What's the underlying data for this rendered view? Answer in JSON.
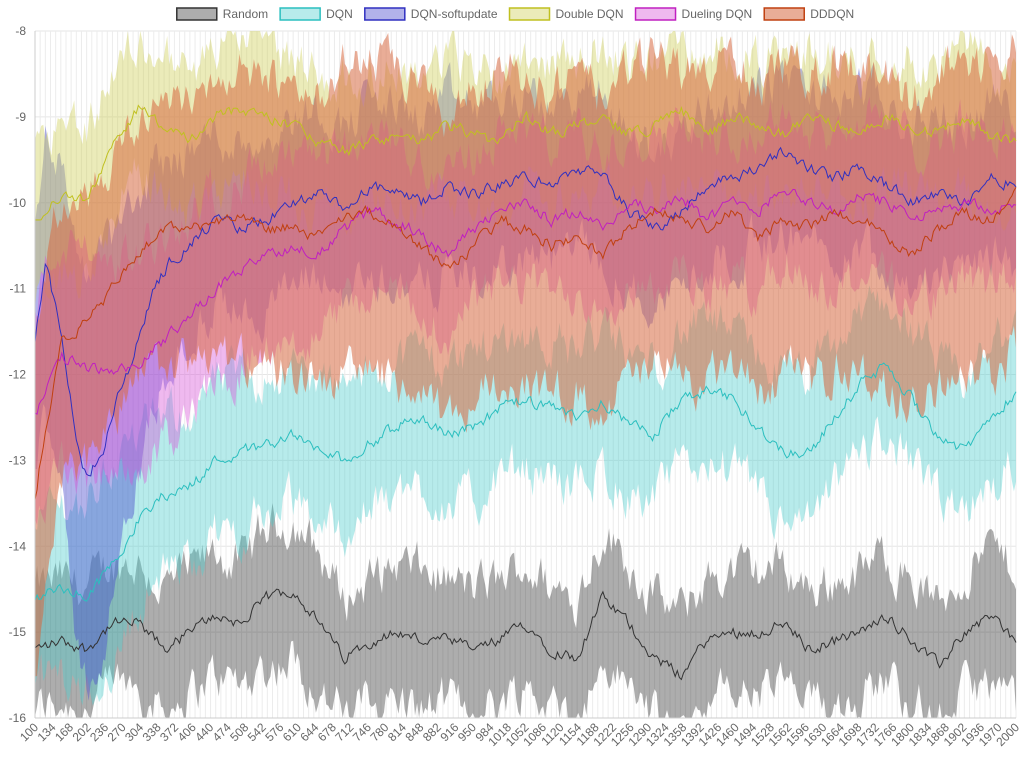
{
  "chart_data": {
    "type": "line",
    "title": "",
    "xlabel": "",
    "ylabel": "",
    "ylim": [
      -16,
      -8
    ],
    "xlim": [
      100,
      2000
    ],
    "y_ticks": [
      "-8",
      "-9",
      "-10",
      "-11",
      "-12",
      "-13",
      "-14",
      "-15",
      "-16"
    ],
    "x_tick_labels": [
      "100",
      "134",
      "168",
      "202",
      "236",
      "270",
      "304",
      "338",
      "372",
      "406",
      "440",
      "474",
      "508",
      "542",
      "576",
      "610",
      "644",
      "678",
      "712",
      "746",
      "780",
      "814",
      "848",
      "882",
      "916",
      "950",
      "984",
      "1018",
      "1052",
      "1086",
      "1120",
      "1154",
      "1188",
      "1222",
      "1256",
      "1290",
      "1324",
      "1358",
      "1392",
      "1426",
      "1460",
      "1494",
      "1528",
      "1562",
      "1596",
      "1630",
      "1664",
      "1698",
      "1732",
      "1766",
      "1800",
      "1834",
      "1868",
      "1902",
      "1936",
      "1970",
      "2000"
    ],
    "grid": true,
    "legend_position": "top",
    "series": [
      {
        "name": "Random",
        "color": "#333333",
        "fill": "rgba(0,0,0,0.32)",
        "x": [
          100,
          150,
          200,
          250,
          300,
          350,
          400,
          450,
          500,
          550,
          600,
          650,
          700,
          750,
          800,
          850,
          900,
          950,
          1000,
          1050,
          1100,
          1150,
          1200,
          1250,
          1300,
          1350,
          1400,
          1450,
          1500,
          1550,
          1600,
          1650,
          1700,
          1750,
          1800,
          1850,
          1900,
          1950,
          2000
        ],
        "mean": [
          -15.2,
          -15.1,
          -15.2,
          -14.9,
          -14.9,
          -15.2,
          -15.0,
          -14.8,
          -14.9,
          -14.6,
          -14.5,
          -14.9,
          -15.3,
          -15.1,
          -15.0,
          -15.1,
          -15.1,
          -15.2,
          -15.1,
          -14.9,
          -15.2,
          -15.3,
          -14.6,
          -14.9,
          -15.3,
          -15.5,
          -15.1,
          -15.0,
          -15.0,
          -14.9,
          -15.2,
          -15.1,
          -15.0,
          -14.8,
          -15.1,
          -15.4,
          -15.0,
          -14.8,
          -15.1
        ],
        "band": [
          0.7,
          0.7,
          0.7,
          0.7,
          0.7,
          0.7,
          0.7,
          0.7,
          0.7,
          0.8,
          0.8,
          0.8,
          0.7,
          0.7,
          0.8,
          0.8,
          0.7,
          0.7,
          0.7,
          0.7,
          0.7,
          0.7,
          0.8,
          0.7,
          0.7,
          0.7,
          0.7,
          0.7,
          0.7,
          0.7,
          0.7,
          0.7,
          0.7,
          0.7,
          0.7,
          0.7,
          0.7,
          0.8,
          0.8
        ]
      },
      {
        "name": "DQN",
        "color": "#2cbfbf",
        "fill": "rgba(75,205,205,0.40)",
        "x": [
          100,
          150,
          200,
          250,
          300,
          350,
          400,
          450,
          500,
          550,
          600,
          650,
          700,
          750,
          800,
          850,
          900,
          950,
          1000,
          1050,
          1100,
          1150,
          1200,
          1250,
          1300,
          1350,
          1400,
          1450,
          1500,
          1550,
          1600,
          1650,
          1700,
          1750,
          1800,
          1850,
          1900,
          1950,
          2000
        ],
        "mean": [
          -14.6,
          -14.5,
          -14.6,
          -14.2,
          -13.7,
          -13.4,
          -13.3,
          -13.0,
          -12.9,
          -12.8,
          -12.7,
          -12.9,
          -13.0,
          -12.8,
          -12.6,
          -12.5,
          -12.7,
          -12.6,
          -12.4,
          -12.3,
          -12.4,
          -12.5,
          -12.3,
          -12.6,
          -12.7,
          -12.3,
          -12.2,
          -12.3,
          -12.6,
          -12.9,
          -12.9,
          -12.5,
          -12.1,
          -11.9,
          -12.3,
          -12.7,
          -12.9,
          -12.5,
          -12.2
        ],
        "band": [
          1.0,
          1.0,
          1.1,
          1.2,
          1.0,
          0.9,
          0.9,
          0.9,
          0.9,
          0.8,
          0.8,
          0.8,
          0.8,
          0.8,
          0.8,
          0.8,
          0.8,
          0.9,
          0.8,
          0.8,
          0.8,
          0.8,
          0.8,
          0.8,
          0.8,
          0.8,
          0.8,
          0.8,
          0.8,
          0.9,
          0.9,
          0.8,
          0.8,
          0.8,
          0.8,
          0.8,
          0.8,
          0.8,
          0.8
        ]
      },
      {
        "name": "DQN-softupdate",
        "color": "#3030c0",
        "fill": "rgba(72,72,205,0.42)",
        "x": [
          100,
          120,
          150,
          180,
          200,
          230,
          260,
          300,
          330,
          360,
          400,
          450,
          500,
          550,
          600,
          650,
          700,
          750,
          800,
          850,
          900,
          950,
          1000,
          1050,
          1100,
          1150,
          1200,
          1250,
          1300,
          1350,
          1400,
          1450,
          1500,
          1550,
          1600,
          1650,
          1700,
          1750,
          1800,
          1850,
          1900,
          1950,
          2000
        ],
        "mean": [
          -11.6,
          -10.7,
          -11.5,
          -12.8,
          -13.2,
          -12.9,
          -12.3,
          -11.6,
          -11.0,
          -10.7,
          -10.5,
          -10.2,
          -10.3,
          -10.2,
          -10.0,
          -9.9,
          -10.1,
          -9.8,
          -9.9,
          -10.0,
          -9.8,
          -9.9,
          -9.8,
          -9.7,
          -9.8,
          -9.6,
          -9.7,
          -10.1,
          -10.3,
          -10.1,
          -9.8,
          -9.7,
          -9.6,
          -9.4,
          -9.6,
          -9.7,
          -9.6,
          -9.8,
          -10.0,
          -9.9,
          -10.0,
          -9.7,
          -9.8
        ],
        "band": [
          1.5,
          1.5,
          2.0,
          2.3,
          2.4,
          2.4,
          2.0,
          1.6,
          1.4,
          1.2,
          1.1,
          1.0,
          1.0,
          1.0,
          1.0,
          1.0,
          1.0,
          1.0,
          1.0,
          1.0,
          1.0,
          1.0,
          1.0,
          0.9,
          0.9,
          0.9,
          0.9,
          0.9,
          0.9,
          0.9,
          0.9,
          0.9,
          0.9,
          0.9,
          0.9,
          0.9,
          0.9,
          0.9,
          0.9,
          0.9,
          0.9,
          0.9,
          0.9
        ]
      },
      {
        "name": "Double DQN",
        "color": "#c0c020",
        "fill": "rgba(205,205,80,0.40)",
        "x": [
          100,
          150,
          200,
          250,
          300,
          350,
          400,
          450,
          500,
          550,
          600,
          650,
          700,
          750,
          800,
          850,
          900,
          950,
          1000,
          1050,
          1100,
          1150,
          1200,
          1250,
          1300,
          1350,
          1400,
          1450,
          1500,
          1550,
          1600,
          1650,
          1700,
          1750,
          1800,
          1850,
          1900,
          1950,
          2000
        ],
        "mean": [
          -10.2,
          -9.9,
          -10.0,
          -9.3,
          -8.9,
          -9.1,
          -9.3,
          -9.0,
          -8.9,
          -9.0,
          -9.1,
          -9.3,
          -9.4,
          -9.3,
          -9.2,
          -9.3,
          -9.1,
          -9.2,
          -9.3,
          -9.0,
          -9.2,
          -9.1,
          -9.0,
          -9.2,
          -9.1,
          -8.9,
          -9.2,
          -9.0,
          -9.1,
          -9.2,
          -9.0,
          -9.1,
          -9.2,
          -9.0,
          -9.1,
          -9.2,
          -9.0,
          -9.2,
          -9.3
        ],
        "band": [
          1.0,
          0.9,
          0.9,
          0.8,
          0.8,
          0.8,
          0.8,
          0.8,
          0.8,
          0.8,
          0.8,
          0.8,
          0.8,
          0.8,
          0.8,
          0.8,
          0.8,
          0.8,
          0.8,
          0.8,
          0.8,
          0.8,
          0.8,
          0.8,
          0.8,
          0.8,
          0.8,
          0.8,
          0.8,
          0.8,
          0.8,
          0.8,
          0.8,
          0.8,
          0.8,
          0.8,
          0.8,
          0.8,
          0.8
        ]
      },
      {
        "name": "Dueling DQN",
        "color": "#c020c0",
        "fill": "rgba(215,80,215,0.40)",
        "x": [
          100,
          150,
          200,
          250,
          300,
          350,
          400,
          450,
          500,
          550,
          600,
          650,
          700,
          750,
          800,
          850,
          900,
          950,
          1000,
          1050,
          1100,
          1150,
          1200,
          1250,
          1300,
          1350,
          1400,
          1450,
          1500,
          1550,
          1600,
          1650,
          1700,
          1750,
          1800,
          1850,
          1900,
          1950,
          2000
        ],
        "mean": [
          -12.5,
          -11.8,
          -11.9,
          -12.0,
          -11.9,
          -11.6,
          -11.3,
          -11.0,
          -10.8,
          -10.6,
          -10.5,
          -10.6,
          -10.3,
          -10.1,
          -10.2,
          -10.4,
          -10.6,
          -10.3,
          -10.1,
          -10.0,
          -10.2,
          -10.1,
          -10.3,
          -10.0,
          -10.1,
          -9.9,
          -10.2,
          -10.0,
          -10.1,
          -9.8,
          -10.0,
          -10.1,
          -9.9,
          -10.0,
          -10.2,
          -10.1,
          -10.0,
          -10.1,
          -10.0
        ],
        "band": [
          1.4,
          1.3,
          1.3,
          1.3,
          1.3,
          1.2,
          1.2,
          1.1,
          1.1,
          1.0,
          1.0,
          1.0,
          0.9,
          0.9,
          0.9,
          0.9,
          0.9,
          0.9,
          0.9,
          0.9,
          0.9,
          0.9,
          0.9,
          0.9,
          0.9,
          0.9,
          0.9,
          0.9,
          0.9,
          0.9,
          0.9,
          0.9,
          0.9,
          0.9,
          0.9,
          0.9,
          0.9,
          0.9,
          0.9
        ]
      },
      {
        "name": "DDDQN",
        "color": "#c04010",
        "fill": "rgba(215,105,65,0.55)",
        "x": [
          100,
          150,
          200,
          250,
          300,
          350,
          400,
          450,
          500,
          550,
          600,
          650,
          700,
          750,
          800,
          850,
          900,
          950,
          1000,
          1050,
          1100,
          1150,
          1200,
          1250,
          1300,
          1350,
          1400,
          1450,
          1500,
          1550,
          1600,
          1650,
          1700,
          1750,
          1800,
          1850,
          1900,
          1950,
          2000
        ],
        "mean": [
          -13.4,
          -11.6,
          -11.4,
          -11.0,
          -10.6,
          -10.3,
          -10.3,
          -10.2,
          -10.2,
          -10.3,
          -10.3,
          -10.4,
          -10.2,
          -10.1,
          -10.3,
          -10.5,
          -10.8,
          -10.5,
          -10.2,
          -10.3,
          -10.5,
          -10.4,
          -10.6,
          -10.3,
          -10.1,
          -10.2,
          -10.3,
          -10.1,
          -10.4,
          -10.2,
          -10.3,
          -10.1,
          -10.2,
          -10.4,
          -10.6,
          -10.3,
          -10.1,
          -10.2,
          -9.9
        ],
        "band": [
          2.0,
          1.6,
          1.6,
          1.5,
          1.5,
          1.6,
          1.6,
          1.6,
          1.7,
          1.7,
          1.7,
          1.7,
          1.8,
          1.8,
          1.8,
          1.8,
          1.8,
          1.8,
          1.8,
          1.8,
          1.8,
          1.8,
          1.8,
          1.8,
          1.8,
          1.8,
          1.8,
          1.8,
          1.8,
          1.8,
          1.8,
          1.8,
          1.8,
          1.8,
          1.8,
          1.8,
          1.8,
          1.8,
          1.8
        ]
      }
    ]
  }
}
